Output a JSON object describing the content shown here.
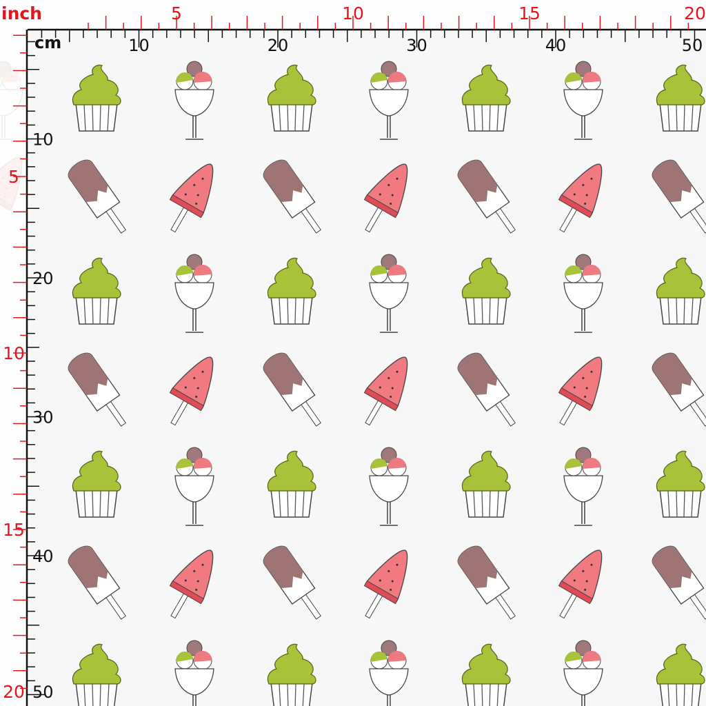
{
  "ruler": {
    "top": {
      "unit_label": "inch",
      "inch_labels": [
        5,
        10,
        15,
        20
      ],
      "cm_label": "cm",
      "cm_labels": [
        10,
        20,
        30,
        40,
        50
      ]
    },
    "left": {
      "cm_labels": [
        10,
        20,
        30,
        40,
        50
      ],
      "inch_labels": [
        5,
        10,
        15,
        20
      ]
    }
  }
}
